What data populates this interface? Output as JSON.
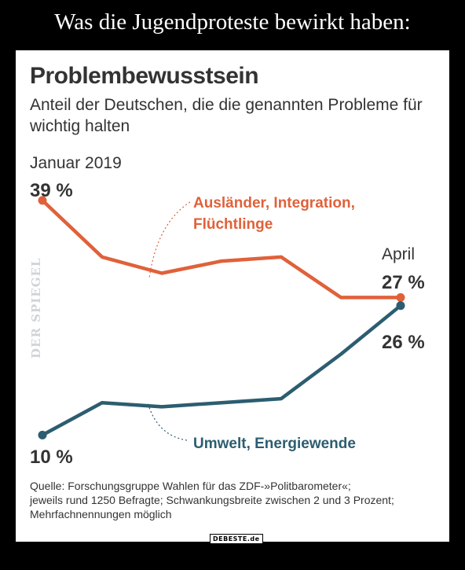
{
  "meme_caption": "Was die Jugendproteste bewirkt haben:",
  "watermark": "DER SPIEGEL",
  "site_logo": "DEBESTE.de",
  "chart_data": {
    "type": "line",
    "title": "Problembewusstsein",
    "subtitle": "Anteil der Deutschen, die die genannten Probleme für wichtig halten",
    "start_label": "Januar 2019",
    "end_label": "April",
    "x": [
      1,
      2,
      3,
      4,
      5,
      6,
      7
    ],
    "ylim": [
      8,
      42
    ],
    "series": [
      {
        "name": "Ausländer, Integration, Flüchtlinge",
        "name_lines": [
          "Ausländer, Integration,",
          "Flüchtlinge"
        ],
        "color": "#e0613a",
        "values": [
          39,
          32,
          30,
          31.5,
          32,
          27,
          27
        ],
        "start_label": "39 %",
        "end_label": "27 %"
      },
      {
        "name": "Umwelt, Energiewende",
        "name_lines": [
          "Umwelt, Energiewende"
        ],
        "color": "#2c5d70",
        "values": [
          10,
          14,
          13.5,
          14,
          14.5,
          20,
          26
        ],
        "start_label": "10 %",
        "end_label": "26 %"
      }
    ],
    "source_lines": [
      "Quelle: Forschungsgruppe Wahlen für das ZDF-»Politbarometer«;",
      "jeweils rund 1250 Befragte; Schwankungsbreite zwischen 2 und 3 Prozent;",
      "Mehrfachnennungen möglich"
    ]
  }
}
